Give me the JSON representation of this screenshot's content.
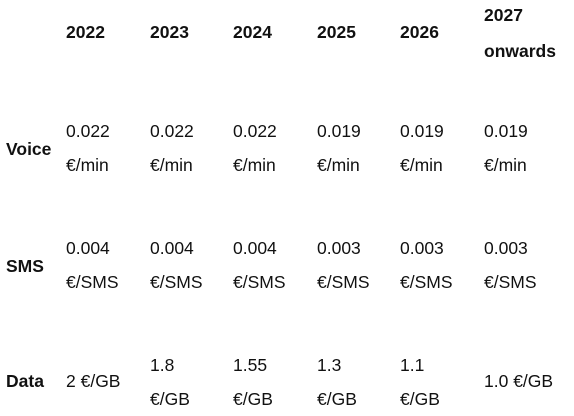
{
  "table": {
    "columns": [
      "2022",
      "2023",
      "2024",
      "2025",
      "2026",
      "2027 onwards"
    ],
    "rows": [
      {
        "label": "Voice",
        "values": [
          "0.022 €/min",
          "0.022 €/min",
          "0.022 €/min",
          "0.019 €/min",
          "0.019 €/min",
          "0.019 €/min"
        ]
      },
      {
        "label": "SMS",
        "values": [
          "0.004 €/SMS",
          "0.004 €/SMS",
          "0.004 €/SMS",
          "0.003 €/SMS",
          "0.003 €/SMS",
          "0.003 €/SMS"
        ]
      },
      {
        "label": "Data",
        "values": [
          "2 €/GB",
          "1.8 €/GB",
          "1.55 €/GB",
          "1.3 €/GB",
          "1.1 €/GB",
          "1.0 €/GB"
        ]
      }
    ]
  }
}
